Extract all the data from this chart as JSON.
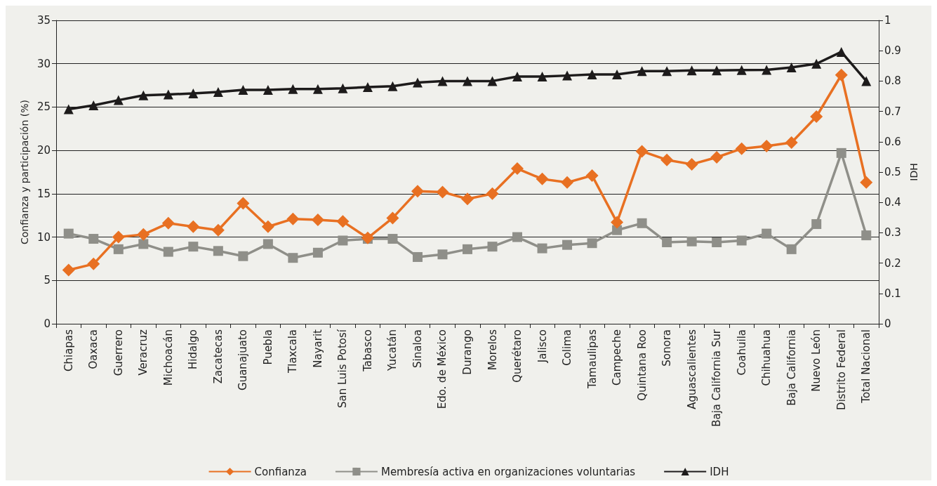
{
  "chart_data": {
    "type": "line",
    "ylabel": "Confianza y participación (%)",
    "y2label": "IDH",
    "categories": [
      "Chiapas",
      "Oaxaca",
      "Guerrero",
      "Veracruz",
      "Michoacán",
      "Hidalgo",
      "Zacatecas",
      "Guanajuato",
      "Puebla",
      "Tlaxcala",
      "Nayarit",
      "San Luis Potosí",
      "Tabasco",
      "Yucatán",
      "Sinaloa",
      "Edo. de México",
      "Durango",
      "Morelos",
      "Querétaro",
      "Jalisco",
      "Colima",
      "Tamaulipas",
      "Campeche",
      "Quintana Roo",
      "Sonora",
      "Aguascalientes",
      "Baja California Sur",
      "Coahuila",
      "Chihuahua",
      "Baja California",
      "Nuevo León",
      "Distrito Federal",
      "Total Nacional"
    ],
    "series": [
      {
        "name": "Confianza",
        "color": "#e87022",
        "marker": "diamond",
        "values": [
          6.2,
          6.9,
          10,
          10.3,
          11.6,
          11.2,
          10.8,
          13.9,
          11.2,
          12.1,
          12.0,
          11.8,
          9.9,
          12.2,
          15.3,
          15.2,
          14.4,
          15.0,
          17.9,
          16.7,
          16.3,
          17.1,
          11.7,
          19.9,
          18.9,
          18.4,
          19.2,
          20.2,
          20.5,
          20.9,
          23.9,
          28.7,
          16.3
        ]
      },
      {
        "name": "Membresía activa en organizaciones voluntarias",
        "color": "#8f8f89",
        "marker": "square",
        "values": [
          10.4,
          9.8,
          8.6,
          9.2,
          8.3,
          8.9,
          8.4,
          7.8,
          9.2,
          7.6,
          8.2,
          9.6,
          9.8,
          9.8,
          7.7,
          8.0,
          8.6,
          8.9,
          10.0,
          8.7,
          9.1,
          9.3,
          10.8,
          11.6,
          9.4,
          9.5,
          9.4,
          9.6,
          10.4,
          8.6,
          11.5,
          19.7,
          10.2
        ]
      },
      {
        "name": "IDH",
        "color": "#1d1b1b",
        "marker": "triangle",
        "axis": "y2",
        "values": [
          0.707,
          0.72,
          0.737,
          0.753,
          0.756,
          0.759,
          0.764,
          0.771,
          0.771,
          0.774,
          0.774,
          0.776,
          0.78,
          0.783,
          0.795,
          0.8,
          0.8,
          0.8,
          0.815,
          0.815,
          0.818,
          0.822,
          0.822,
          0.833,
          0.833,
          0.835,
          0.835,
          0.836,
          0.837,
          0.845,
          0.857,
          0.896,
          0.8
        ]
      }
    ],
    "ylim": [
      0,
      35
    ],
    "yticks": [
      0,
      5,
      10,
      15,
      20,
      25,
      30,
      35
    ],
    "y2lim": [
      0,
      1
    ],
    "y2ticks": [
      0,
      0.1,
      0.2,
      0.3,
      0.4,
      0.5,
      0.6,
      0.7,
      0.8,
      0.9,
      1
    ],
    "grid": "y",
    "legend": "bottom",
    "line_style": "solid"
  }
}
